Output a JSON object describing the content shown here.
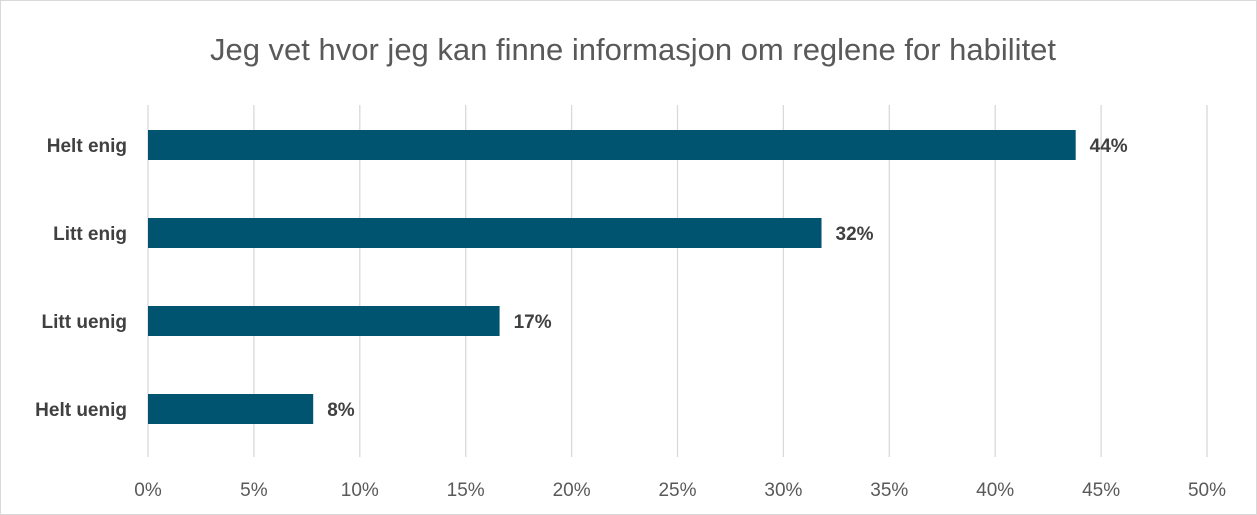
{
  "chart_data": {
    "type": "bar",
    "orientation": "horizontal",
    "title": "Jeg vet hvor jeg kan finne informasjon om reglene for habilitet",
    "categories": [
      "Helt enig",
      "Litt enig",
      "Litt uenig",
      "Helt uenig"
    ],
    "values": [
      43.8,
      31.8,
      16.6,
      7.8
    ],
    "value_labels": [
      "44%",
      "32%",
      "17%",
      "8%"
    ],
    "color": "#00546f",
    "xlim": [
      0,
      50
    ],
    "xticks": [
      {
        "value": 0,
        "label": "0%"
      },
      {
        "value": 5,
        "label": "5%"
      },
      {
        "value": 10,
        "label": "10%"
      },
      {
        "value": 15,
        "label": "15%"
      },
      {
        "value": 20,
        "label": "20%"
      },
      {
        "value": 25,
        "label": "25%"
      },
      {
        "value": 30,
        "label": "30%"
      },
      {
        "value": 35,
        "label": "35%"
      },
      {
        "value": 40,
        "label": "40%"
      },
      {
        "value": 45,
        "label": "45%"
      },
      {
        "value": 50,
        "label": "50%"
      }
    ],
    "grid": true
  }
}
